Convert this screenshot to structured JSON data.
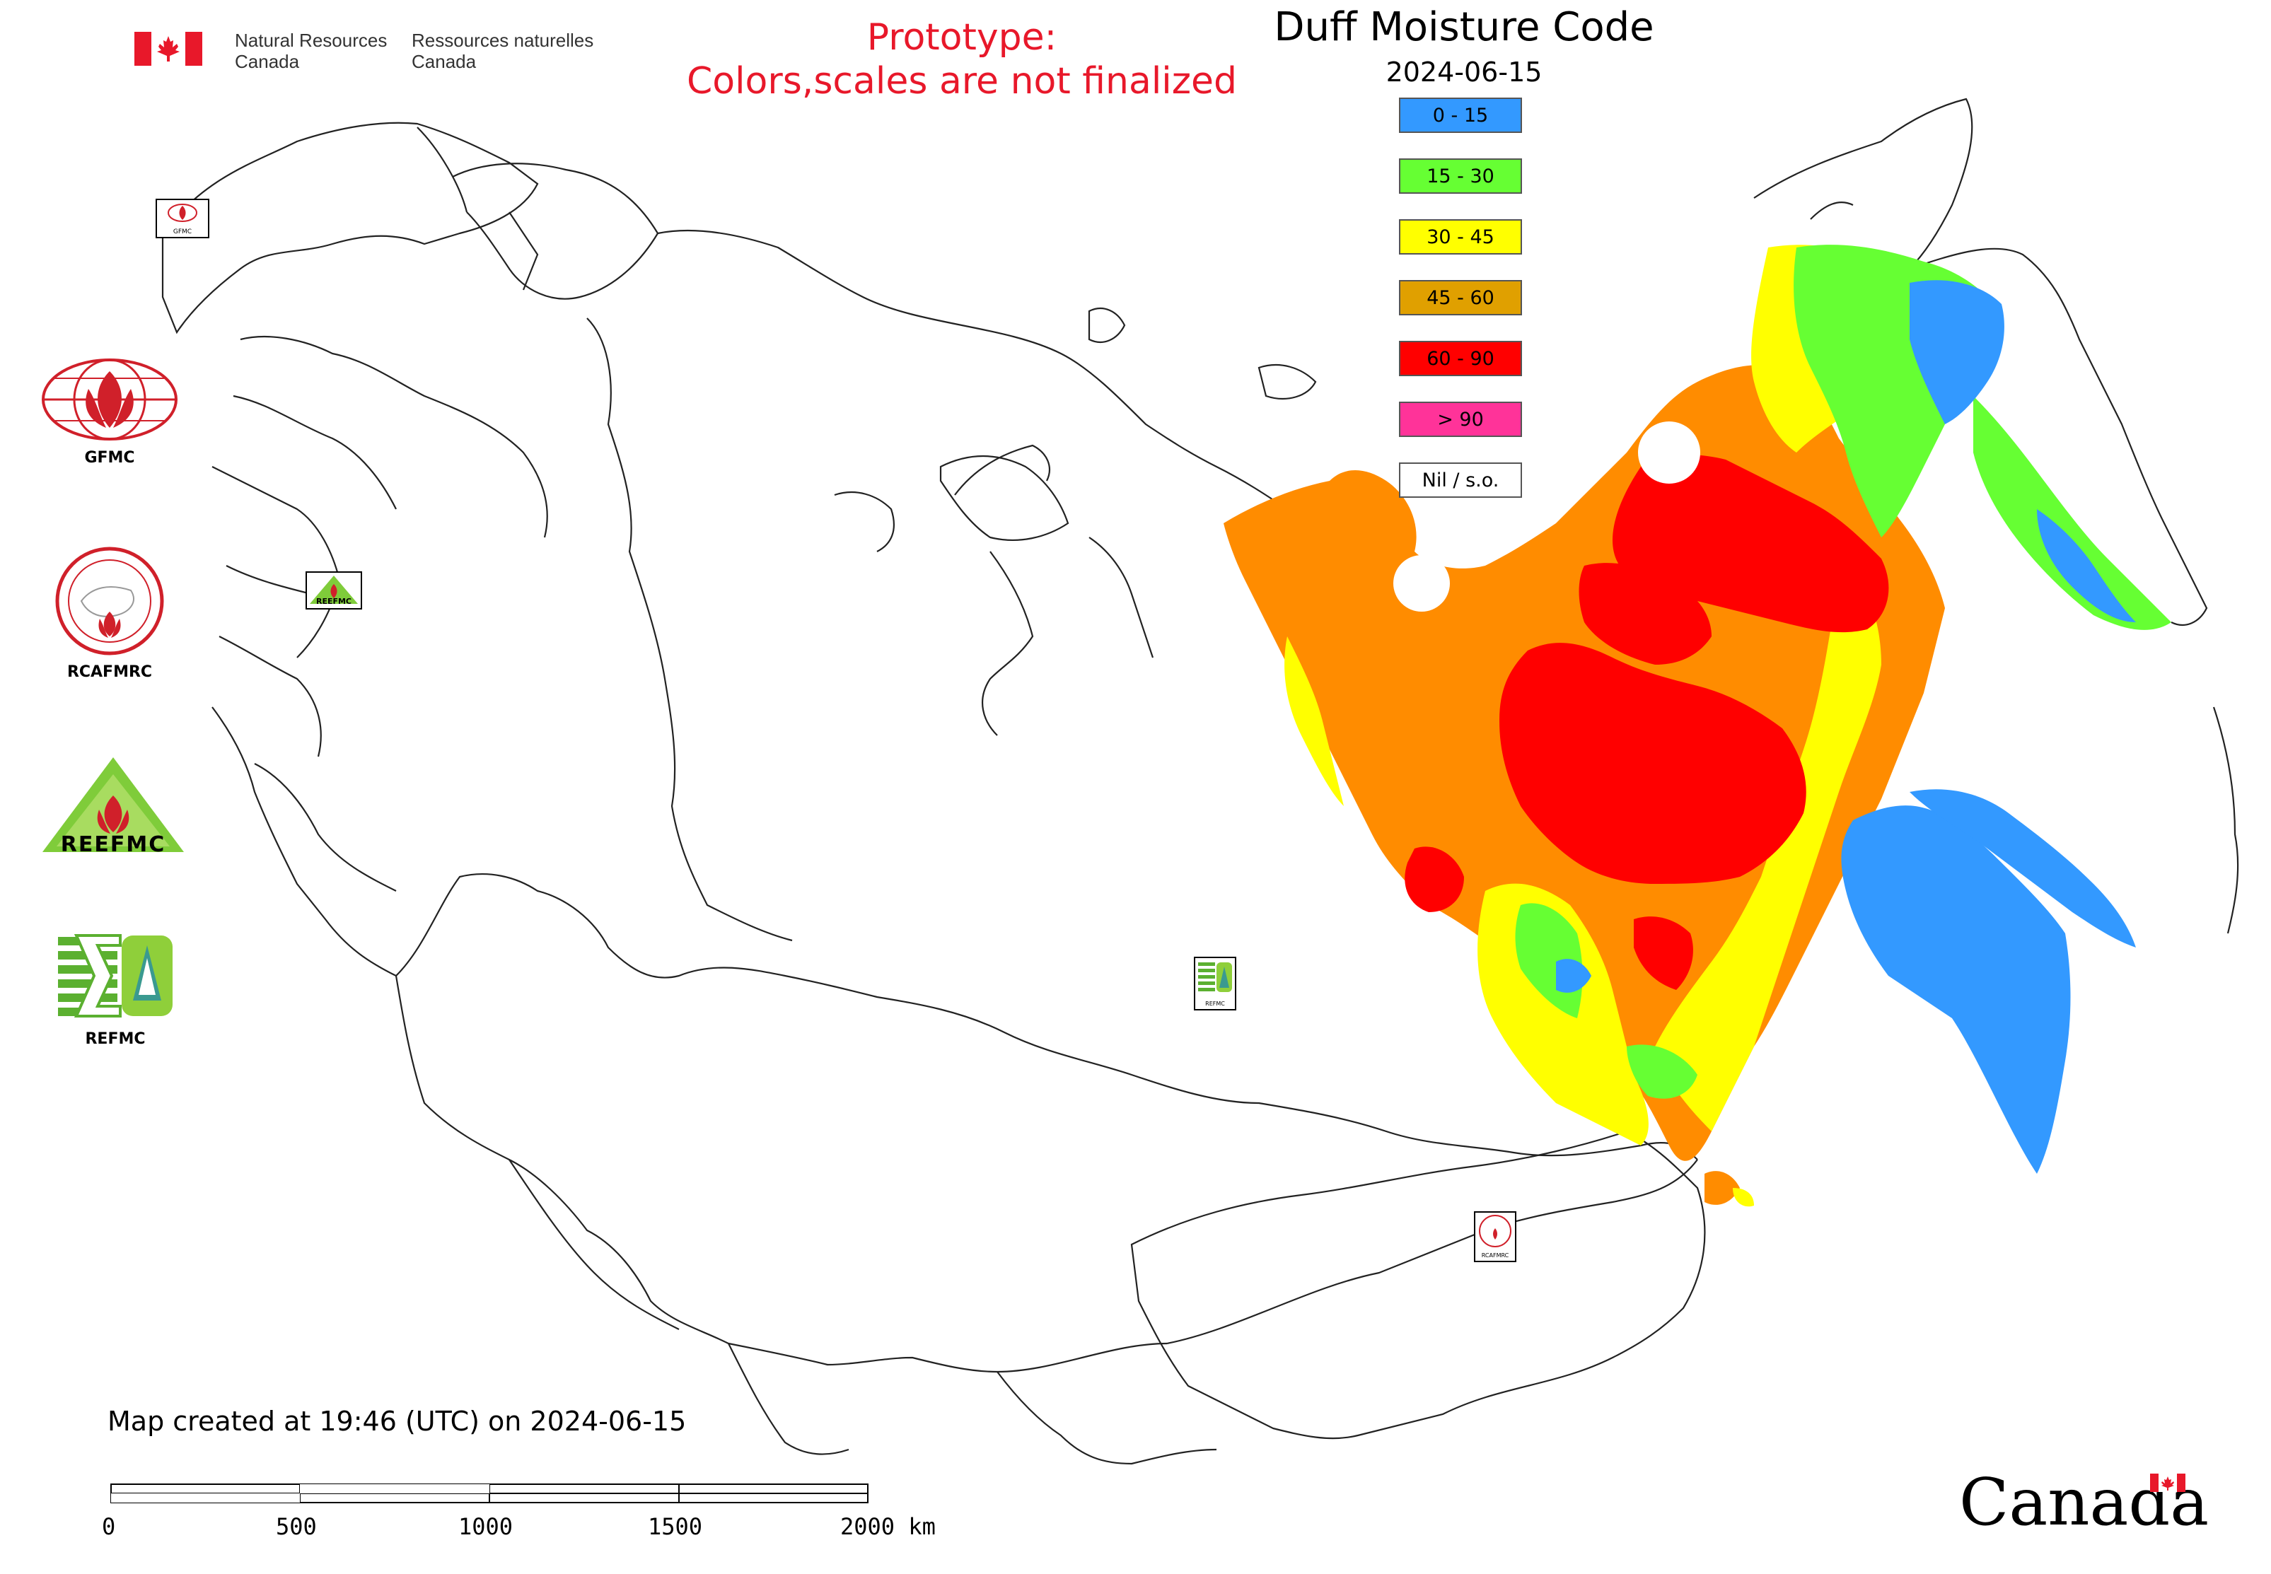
{
  "header": {
    "gov_en_line1": "Natural Resources",
    "gov_en_line2": "Canada",
    "gov_fr_line1": "Ressources naturelles",
    "gov_fr_line2": "Canada",
    "prototype_line1": "Prototype:",
    "prototype_line2": "Colors,scales are not finalized"
  },
  "map": {
    "title": "Duff Moisture Code",
    "date": "2024-06-15",
    "legend": [
      {
        "label": "0 - 15",
        "color": "#3399ff"
      },
      {
        "label": "15 - 30",
        "color": "#66ff33"
      },
      {
        "label": "30 - 45",
        "color": "#ffff00"
      },
      {
        "label": "45 - 60",
        "color": "#e0a000"
      },
      {
        "label": "60 - 90",
        "color": "#ff0000"
      },
      {
        "label": "> 90",
        "color": "#ff3399"
      },
      {
        "label": "Nil / s.o.",
        "color": "#ffffff"
      }
    ]
  },
  "logos": {
    "gfmc": "GFMC",
    "rcafmrc": "RCAFMRC",
    "reefmc": "REEFMC",
    "refmc": "REFMC",
    "small_gfmc": "GFMC",
    "small_reefmc": "REEFMC",
    "small_refmc": "REFMC",
    "small_rcafmrc": "RCAFMRC"
  },
  "footer": {
    "created": "Map created at 19:46 (UTC) on 2024-06-15",
    "scale_labels": [
      "0",
      "500",
      "1000",
      "1500",
      "2000 km"
    ],
    "wordmark": "Canada"
  }
}
